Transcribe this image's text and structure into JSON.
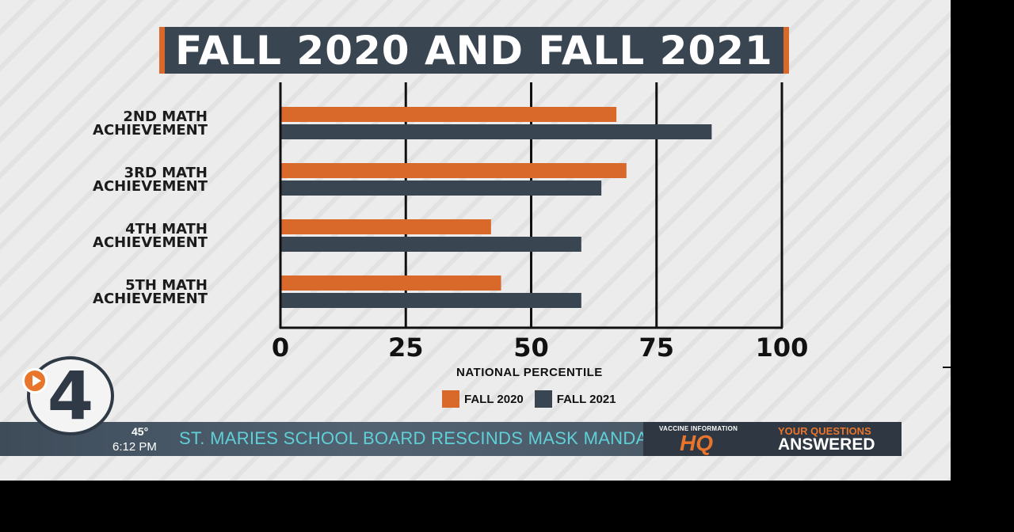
{
  "chart_data": {
    "type": "bar",
    "orientation": "horizontal",
    "title": "FALL 2020 AND FALL 2021",
    "categories": [
      [
        "2ND MATH",
        "ACHIEVEMENT"
      ],
      [
        "3RD MATH",
        "ACHIEVEMENT"
      ],
      [
        "4TH MATH",
        "ACHIEVEMENT"
      ],
      [
        "5TH MATH",
        "ACHIEVEMENT"
      ]
    ],
    "series": [
      {
        "name": "FALL 2020",
        "color": "#d9692a",
        "values": [
          67,
          69,
          42,
          44
        ]
      },
      {
        "name": "FALL 2021",
        "color": "#3a4552",
        "values": [
          86,
          64,
          60,
          60
        ]
      }
    ],
    "xlabel": "NATIONAL PERCENTILE",
    "xlim": [
      0,
      100
    ],
    "xticks": [
      "0",
      "25",
      "50",
      "75",
      "100"
    ],
    "grid": "vertical",
    "legend": "bottom"
  },
  "lower_third": {
    "temperature": "45°",
    "time": "6:12 PM",
    "headline": "ST. MARIES SCHOOL BOARD RESCINDS MASK MANDATE",
    "hq_small": "VACCINE INFORMATION",
    "hq_big": "HQ",
    "questions": "YOUR QUESTIONS",
    "answered": "ANSWERED",
    "logo_number": "4"
  }
}
